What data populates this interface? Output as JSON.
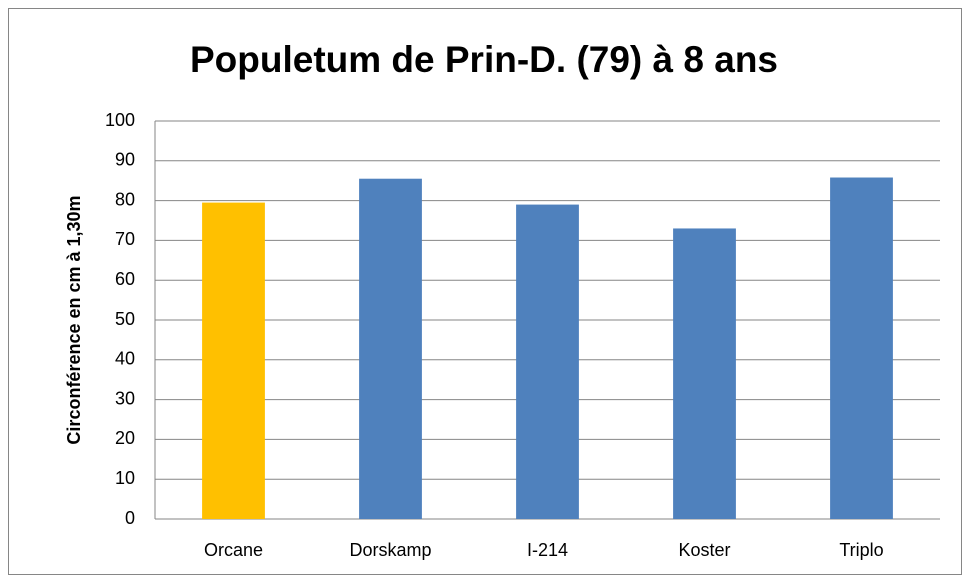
{
  "chart_data": {
    "type": "bar",
    "title": "Populetum de Prin-D. (79) à 8 ans",
    "y_label": "Circonférence en cm à 1,30m",
    "categories": [
      "Orcane",
      "Dorskamp",
      "I-214",
      "Koster",
      "Triplo"
    ],
    "values": [
      79.5,
      85.5,
      79,
      73,
      85.8
    ],
    "colors": [
      "#ffc000",
      "#4f81bd",
      "#4f81bd",
      "#4f81bd",
      "#4f81bd"
    ],
    "ylim": [
      0,
      100
    ],
    "yticks": [
      0,
      10,
      20,
      30,
      40,
      50,
      60,
      70,
      80,
      90,
      100
    ],
    "grid": true
  }
}
